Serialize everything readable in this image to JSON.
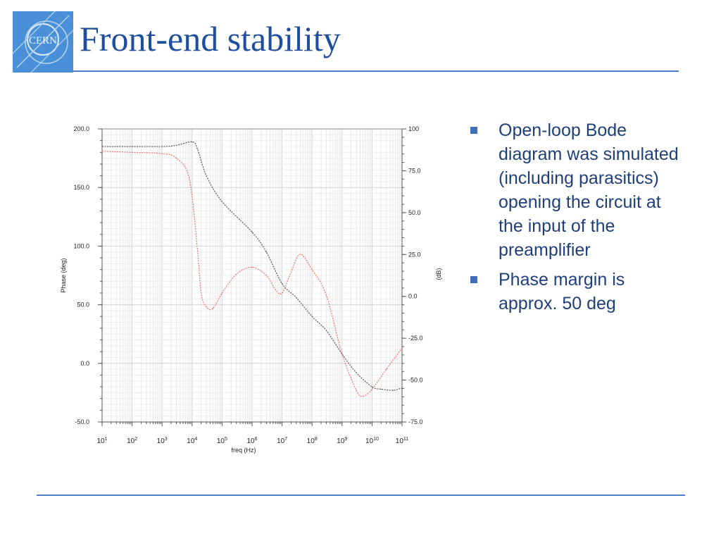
{
  "slide": {
    "title": "Front-end stability",
    "logo_text": "CERN",
    "accent_color": "#4a7fc9",
    "title_color": "#1f4e9e",
    "text_color": "#1f3f7a"
  },
  "bullets": [
    {
      "text": "Open-loop Bode diagram was simulated (including parasitics) opening the circuit at the input of the preamplifier"
    },
    {
      "text": "Phase margin is approx. 50 deg"
    }
  ],
  "chart_data": {
    "type": "line",
    "title": "",
    "xlabel": "freq (Hz)",
    "xscale": "log",
    "x_ticks": [
      {
        "base": "10",
        "exp": "1"
      },
      {
        "base": "10",
        "exp": "2"
      },
      {
        "base": "10",
        "exp": "3"
      },
      {
        "base": "10",
        "exp": "4"
      },
      {
        "base": "10",
        "exp": "5"
      },
      {
        "base": "10",
        "exp": "6"
      },
      {
        "base": "10",
        "exp": "7"
      },
      {
        "base": "10",
        "exp": "8"
      },
      {
        "base": "10",
        "exp": "9"
      },
      {
        "base": "10",
        "exp": "10"
      },
      {
        "base": "10",
        "exp": "11"
      }
    ],
    "xlim": [
      10,
      100000000000
    ],
    "left_axis": {
      "label": "Phase (deg)",
      "lim": [
        -50,
        200
      ],
      "ticks": [
        "200.0",
        "150.0",
        "100.0",
        "50.0",
        "0.0",
        "-50.0"
      ]
    },
    "right_axis": {
      "label": "(dB)",
      "lim": [
        -75,
        100
      ],
      "ticks": [
        "100",
        "75.0",
        "50.0",
        "25.0",
        "0.0",
        "-25.0",
        "-50.0",
        "-75.0"
      ]
    },
    "grid": true,
    "series": [
      {
        "axis": "left",
        "color": "#555555",
        "x": [
          10,
          100,
          1000,
          3000,
          10000,
          15000,
          30000,
          100000,
          1000000,
          3000000,
          10000000,
          30000000,
          100000000,
          300000000,
          1000000000,
          3000000000,
          10000000000,
          20000000000,
          50000000000,
          100000000000
        ],
        "values": [
          185,
          185,
          185,
          186,
          189,
          183,
          160,
          138,
          112,
          95,
          68,
          56,
          40,
          28,
          8,
          -8,
          -20,
          -22,
          -23,
          -21
        ]
      },
      {
        "axis": "left",
        "color": "#e8756f",
        "x": [
          10,
          100,
          1000,
          3000,
          8000,
          15000,
          20000,
          30000,
          50000,
          100000,
          300000,
          1000000,
          3000000,
          6000000,
          10000000,
          20000000,
          40000000,
          100000000,
          300000000,
          1000000000,
          3000000000,
          5000000000,
          10000000000,
          30000000000,
          100000000000
        ],
        "values": [
          181,
          180,
          179,
          175,
          158,
          98,
          60,
          48,
          47,
          60,
          76,
          82,
          75,
          63,
          60,
          78,
          93,
          80,
          58,
          8,
          -23,
          -28,
          -22,
          -5,
          13
        ]
      }
    ]
  }
}
